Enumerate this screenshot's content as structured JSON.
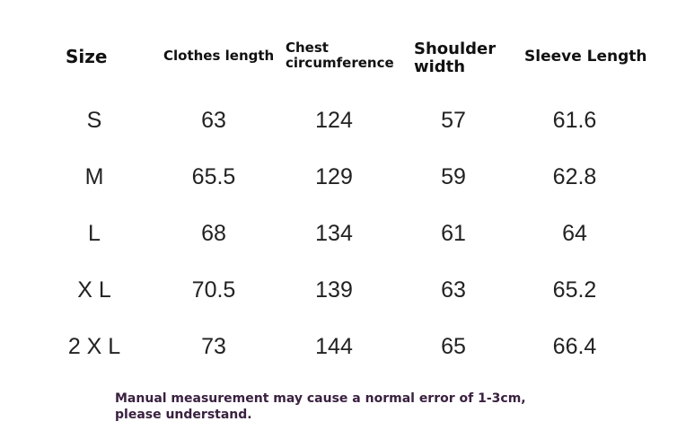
{
  "table": {
    "headers": [
      "Size",
      "Clothes length",
      "Chest circumference",
      "Shoulder width",
      "Sleeve Length"
    ],
    "rows": [
      [
        "S",
        "63",
        "124",
        "57",
        "61.6"
      ],
      [
        "M",
        "65.5",
        "129",
        "59",
        "62.8"
      ],
      [
        "L",
        "68",
        "134",
        "61",
        "64"
      ],
      [
        "X L",
        "70.5",
        "139",
        "63",
        "65.2"
      ],
      [
        "2 X L",
        "73",
        "144",
        "65",
        "66.4"
      ]
    ]
  },
  "note": "Manual measurement may cause a normal error of 1-3cm, please understand."
}
